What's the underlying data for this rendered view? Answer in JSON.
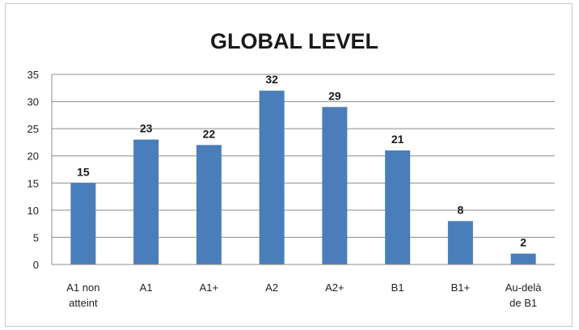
{
  "chart_data": {
    "type": "bar",
    "title": "GLOBAL LEVEL",
    "xlabel": "",
    "ylabel": "",
    "categories": [
      "A1 non atteint",
      "A1",
      "A1+",
      "A2",
      "A2+",
      "B1",
      "B1+",
      "Au-delà de B1"
    ],
    "category_lines": [
      [
        "A1 non",
        "atteint"
      ],
      [
        "A1"
      ],
      [
        "A1+"
      ],
      [
        "A2"
      ],
      [
        "A2+"
      ],
      [
        "B1"
      ],
      [
        "B1+"
      ],
      [
        "Au-delà",
        "de B1"
      ]
    ],
    "values": [
      15,
      23,
      22,
      32,
      29,
      21,
      8,
      2
    ],
    "ylim": [
      0,
      35
    ],
    "yticks": [
      0,
      5,
      10,
      15,
      20,
      25,
      30,
      35
    ],
    "grid": true,
    "legend": "none",
    "bar_color": "#4a7ebb",
    "data_labels": true
  }
}
